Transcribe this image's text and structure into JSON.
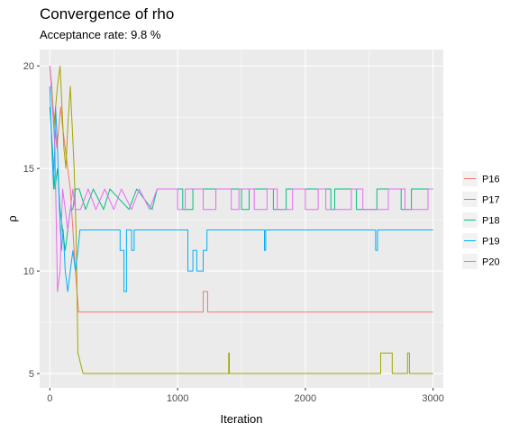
{
  "chart_data": {
    "type": "line",
    "title": "Convergence of rho",
    "subtitle": "Acceptance rate: 9.8 %",
    "xlabel": "Iteration",
    "ylabel": "ρ",
    "xlim": [
      -80,
      3080
    ],
    "ylim": [
      4.3,
      20.8
    ],
    "xticks": [
      0,
      1000,
      2000,
      3000
    ],
    "yticks": [
      5,
      10,
      15,
      20
    ],
    "grid": true,
    "legend_position": "right",
    "series": [
      {
        "name": "P16",
        "color": "#F8766D",
        "points": [
          [
            0,
            20
          ],
          [
            10,
            19
          ],
          [
            25,
            18
          ],
          [
            40,
            17
          ],
          [
            55,
            16
          ],
          [
            70,
            17
          ],
          [
            85,
            18
          ],
          [
            100,
            17
          ],
          [
            120,
            16
          ],
          [
            140,
            15
          ],
          [
            160,
            14
          ],
          [
            180,
            12
          ],
          [
            200,
            10
          ],
          [
            225,
            8
          ],
          [
            1200,
            8
          ],
          [
            1200,
            9
          ],
          [
            1235,
            9
          ],
          [
            1235,
            8
          ],
          [
            3000,
            8
          ]
        ]
      },
      {
        "name": "P17",
        "color": "#A3A500",
        "points": [
          [
            0,
            20
          ],
          [
            15,
            19
          ],
          [
            30,
            17
          ],
          [
            45,
            18
          ],
          [
            60,
            19
          ],
          [
            80,
            20
          ],
          [
            95,
            18
          ],
          [
            110,
            16
          ],
          [
            125,
            15
          ],
          [
            140,
            17
          ],
          [
            160,
            19
          ],
          [
            175,
            17
          ],
          [
            190,
            15
          ],
          [
            205,
            12
          ],
          [
            220,
            6
          ],
          [
            260,
            5
          ],
          [
            1400,
            5
          ],
          [
            1400,
            6
          ],
          [
            1405,
            6
          ],
          [
            1405,
            5
          ],
          [
            2590,
            5
          ],
          [
            2590,
            6
          ],
          [
            2680,
            6
          ],
          [
            2680,
            5
          ],
          [
            2800,
            5
          ],
          [
            2800,
            6
          ],
          [
            2815,
            6
          ],
          [
            2815,
            5
          ],
          [
            3000,
            5
          ]
        ]
      },
      {
        "name": "P18",
        "color": "#00BF7D",
        "points": [
          [
            0,
            18
          ],
          [
            20,
            16
          ],
          [
            40,
            14
          ],
          [
            60,
            15
          ],
          [
            80,
            13
          ],
          [
            100,
            12
          ],
          [
            120,
            11
          ],
          [
            140,
            12
          ],
          [
            160,
            13
          ],
          [
            180,
            13
          ],
          [
            200,
            14
          ],
          [
            230,
            14
          ],
          [
            280,
            13
          ],
          [
            340,
            14
          ],
          [
            420,
            13
          ],
          [
            470,
            14
          ],
          [
            620,
            13
          ],
          [
            680,
            14
          ],
          [
            800,
            13
          ],
          [
            840,
            14
          ],
          [
            1040,
            14
          ],
          [
            1040,
            13
          ],
          [
            1120,
            13
          ],
          [
            1120,
            14
          ],
          [
            1500,
            14
          ],
          [
            1500,
            13
          ],
          [
            1560,
            13
          ],
          [
            1560,
            14
          ],
          [
            1750,
            14
          ],
          [
            1750,
            13
          ],
          [
            1850,
            13
          ],
          [
            1850,
            14
          ],
          [
            2200,
            14
          ],
          [
            2200,
            13
          ],
          [
            2230,
            13
          ],
          [
            2230,
            14
          ],
          [
            2400,
            14
          ],
          [
            2400,
            13
          ],
          [
            2560,
            13
          ],
          [
            2560,
            14
          ],
          [
            2750,
            14
          ],
          [
            2750,
            13
          ],
          [
            2830,
            13
          ],
          [
            2830,
            14
          ],
          [
            3000,
            14
          ]
        ]
      },
      {
        "name": "P19",
        "color": "#00B0F6",
        "points": [
          [
            0,
            19
          ],
          [
            15,
            16
          ],
          [
            30,
            14
          ],
          [
            45,
            18
          ],
          [
            60,
            16
          ],
          [
            75,
            13
          ],
          [
            90,
            11
          ],
          [
            105,
            12
          ],
          [
            120,
            10
          ],
          [
            140,
            9
          ],
          [
            160,
            10
          ],
          [
            180,
            11
          ],
          [
            200,
            10
          ],
          [
            220,
            11
          ],
          [
            235,
            12
          ],
          [
            550,
            12
          ],
          [
            550,
            11
          ],
          [
            580,
            11
          ],
          [
            580,
            9
          ],
          [
            600,
            9
          ],
          [
            600,
            12
          ],
          [
            640,
            12
          ],
          [
            640,
            11
          ],
          [
            660,
            11
          ],
          [
            660,
            12
          ],
          [
            1080,
            12
          ],
          [
            1080,
            10
          ],
          [
            1120,
            10
          ],
          [
            1120,
            11
          ],
          [
            1150,
            11
          ],
          [
            1150,
            10
          ],
          [
            1200,
            10
          ],
          [
            1200,
            11
          ],
          [
            1230,
            11
          ],
          [
            1230,
            12
          ],
          [
            1680,
            12
          ],
          [
            1680,
            11
          ],
          [
            1690,
            11
          ],
          [
            1690,
            12
          ],
          [
            2550,
            12
          ],
          [
            2550,
            11
          ],
          [
            2565,
            11
          ],
          [
            2565,
            12
          ],
          [
            3000,
            12
          ]
        ]
      },
      {
        "name": "P20",
        "color": "#E76BF3",
        "points": [
          [
            0,
            20
          ],
          [
            20,
            18
          ],
          [
            40,
            16
          ],
          [
            60,
            9
          ],
          [
            80,
            10
          ],
          [
            100,
            14
          ],
          [
            120,
            13
          ],
          [
            140,
            12
          ],
          [
            160,
            13
          ],
          [
            180,
            14
          ],
          [
            200,
            13
          ],
          [
            240,
            13
          ],
          [
            300,
            14
          ],
          [
            360,
            13
          ],
          [
            430,
            14
          ],
          [
            500,
            13
          ],
          [
            560,
            14
          ],
          [
            640,
            13
          ],
          [
            700,
            14
          ],
          [
            780,
            13
          ],
          [
            840,
            14
          ],
          [
            1000,
            14
          ],
          [
            1000,
            13
          ],
          [
            1060,
            13
          ],
          [
            1060,
            14
          ],
          [
            1200,
            14
          ],
          [
            1200,
            13
          ],
          [
            1300,
            13
          ],
          [
            1300,
            14
          ],
          [
            1420,
            14
          ],
          [
            1420,
            13
          ],
          [
            1480,
            13
          ],
          [
            1480,
            14
          ],
          [
            1600,
            14
          ],
          [
            1600,
            13
          ],
          [
            1700,
            13
          ],
          [
            1700,
            14
          ],
          [
            1780,
            14
          ],
          [
            1780,
            13
          ],
          [
            1900,
            13
          ],
          [
            1900,
            14
          ],
          [
            2000,
            14
          ],
          [
            2000,
            13
          ],
          [
            2100,
            13
          ],
          [
            2100,
            14
          ],
          [
            2160,
            14
          ],
          [
            2160,
            13
          ],
          [
            2360,
            13
          ],
          [
            2360,
            14
          ],
          [
            2450,
            14
          ],
          [
            2450,
            13
          ],
          [
            2650,
            13
          ],
          [
            2650,
            14
          ],
          [
            2780,
            14
          ],
          [
            2780,
            13
          ],
          [
            2960,
            13
          ],
          [
            2960,
            14
          ],
          [
            3000,
            14
          ]
        ]
      }
    ]
  }
}
